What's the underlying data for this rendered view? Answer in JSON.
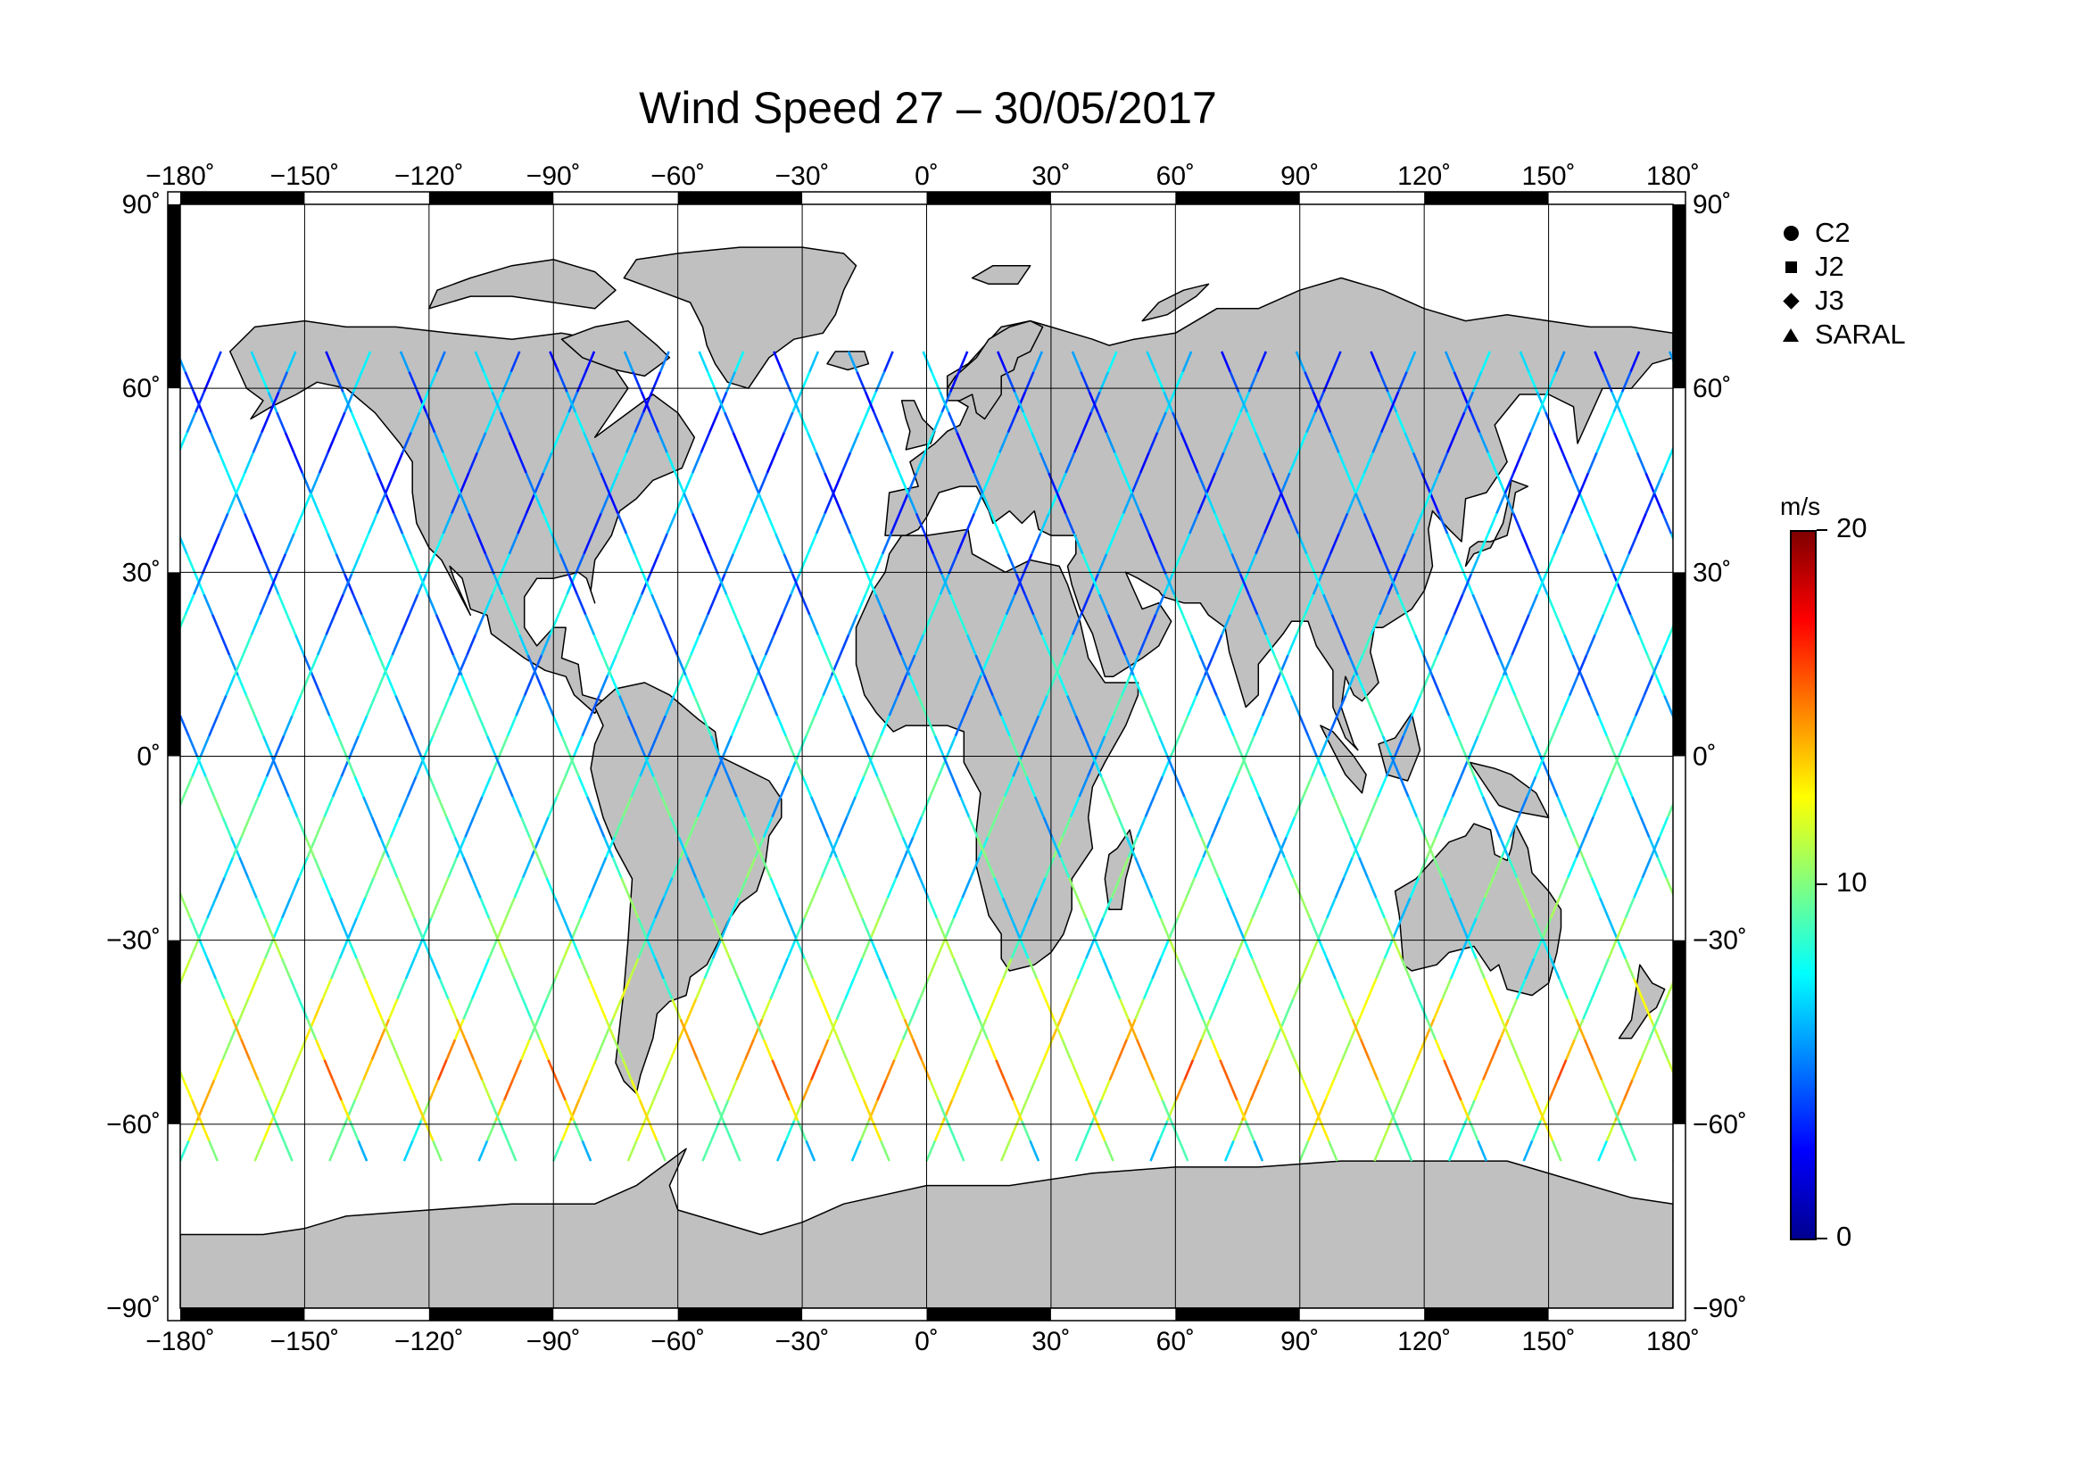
{
  "title": "Wind Speed 27 – 30/05/2017",
  "legend": {
    "items": [
      {
        "label": "C2",
        "symbol": "circle"
      },
      {
        "label": "J2",
        "symbol": "square"
      },
      {
        "label": "J3",
        "symbol": "diamond"
      },
      {
        "label": "SARAL",
        "symbol": "triangle"
      }
    ]
  },
  "colorbar": {
    "unit": "m/s",
    "min": 0,
    "max": 20,
    "ticks": [
      0,
      10,
      20
    ],
    "tick_labels": [
      "0",
      "10",
      "20"
    ],
    "colormap": "jet",
    "colors": [
      "#00008f",
      "#0000ff",
      "#0080ff",
      "#00ffff",
      "#80ff80",
      "#ffff00",
      "#ff8000",
      "#ff0000",
      "#800000"
    ]
  },
  "colors": {
    "land": "#c0c0c0",
    "coastline": "#000000",
    "ocean": "#ffffff",
    "grid": "#000000"
  },
  "chart_data": {
    "type": "map",
    "projection": "plate carree",
    "variable": "altimeter wind speed",
    "xlim": [
      -180,
      180
    ],
    "ylim": [
      -90,
      90
    ],
    "x_ticks": [
      -180,
      -150,
      -120,
      -90,
      -60,
      -30,
      0,
      30,
      60,
      90,
      120,
      150,
      180
    ],
    "y_ticks": [
      90,
      60,
      30,
      0,
      -30,
      -60,
      -90
    ],
    "x_tick_labels": [
      "−180˚",
      "−150˚",
      "−120˚",
      "−90˚",
      "−60˚",
      "−30˚",
      "0˚",
      "30˚",
      "60˚",
      "90˚",
      "120˚",
      "150˚",
      "180˚"
    ],
    "y_tick_labels": [
      "90˚",
      "60˚",
      "30˚",
      "0˚",
      "−30˚",
      "−60˚",
      "−90˚"
    ],
    "grid": true,
    "track_longitude_spacing": 18,
    "track_latitude_limit": [
      -66,
      66
    ],
    "wind_speed_by_latitude": [
      {
        "lat": 60,
        "speed": 5
      },
      {
        "lat": 40,
        "speed": 5
      },
      {
        "lat": 20,
        "speed": 6
      },
      {
        "lat": 0,
        "speed": 7
      },
      {
        "lat": -20,
        "speed": 8
      },
      {
        "lat": -35,
        "speed": 9
      },
      {
        "lat": -45,
        "speed": 12
      },
      {
        "lat": -52,
        "speed": 14
      },
      {
        "lat": -60,
        "speed": 11
      },
      {
        "lat": -65,
        "speed": 8
      }
    ]
  }
}
